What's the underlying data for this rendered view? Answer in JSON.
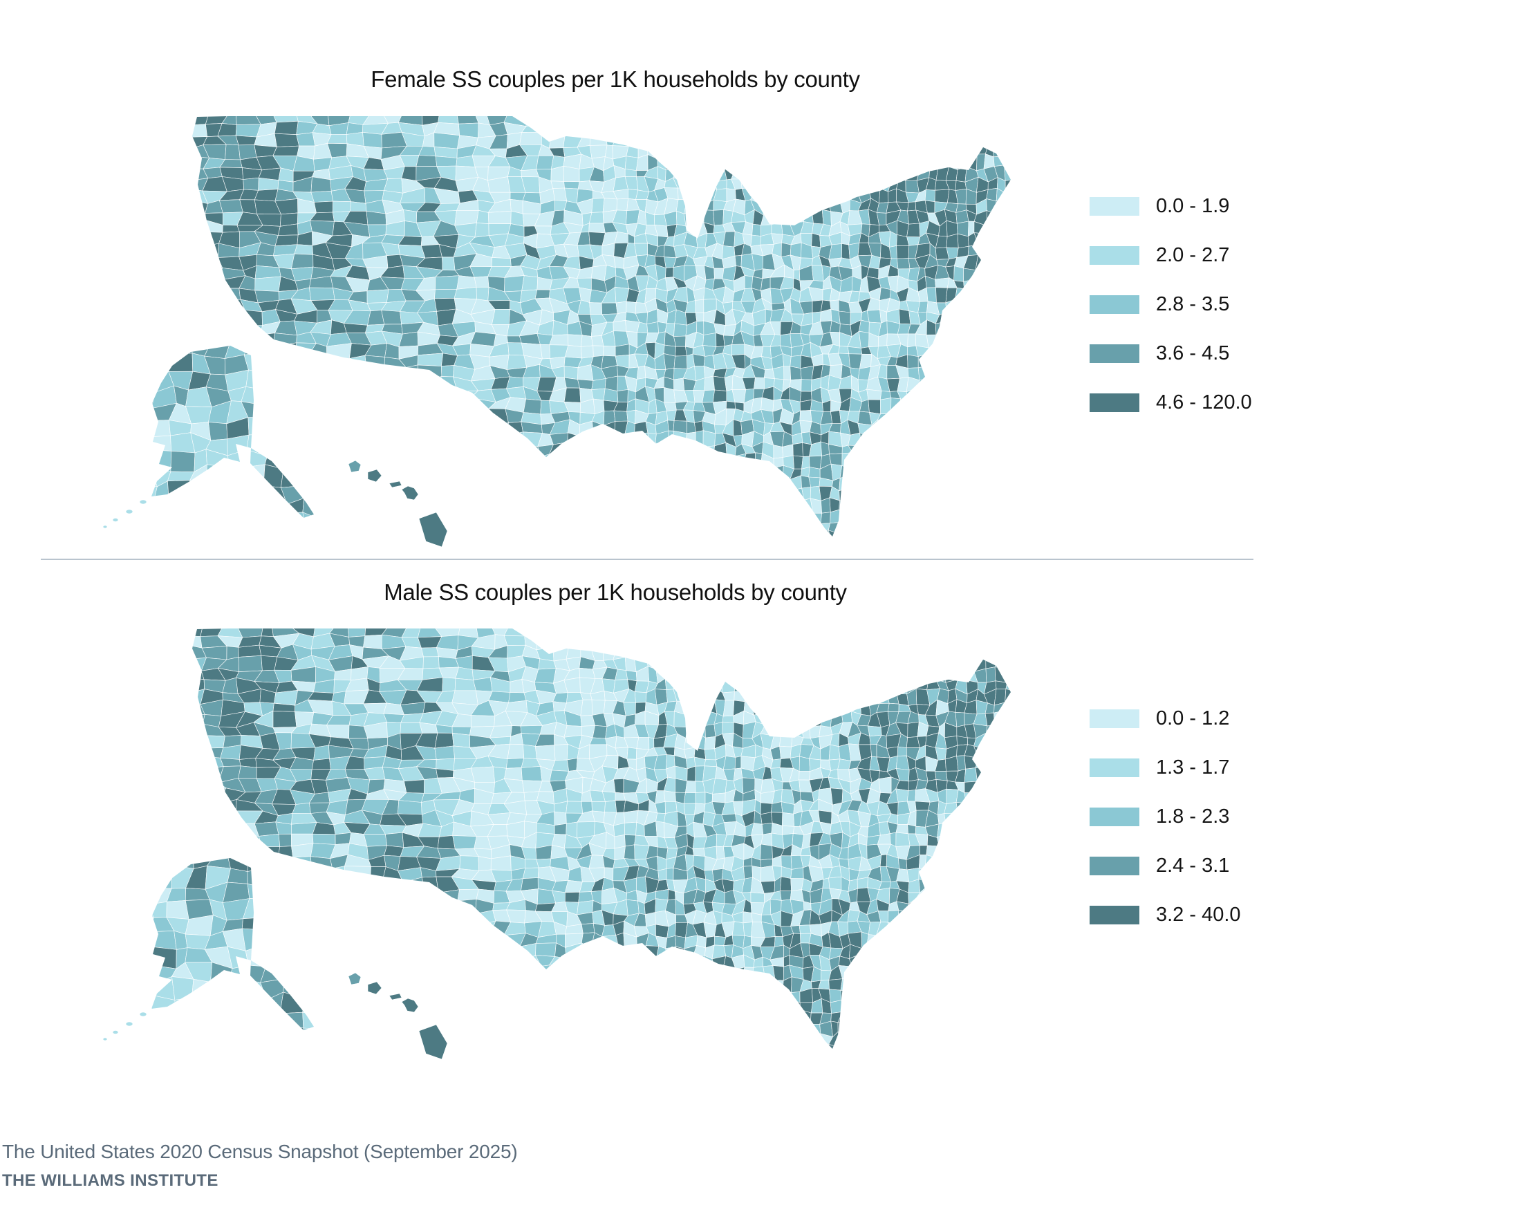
{
  "maps": [
    {
      "title": "Female SS couples per 1K households by county",
      "legend": [
        "0.0 - 1.9",
        "2.0 - 2.7",
        "2.8 - 3.5",
        "3.6 - 4.5",
        "4.6 - 120.0"
      ]
    },
    {
      "title": "Male SS couples per 1K households by county",
      "legend": [
        "0.0 - 1.2",
        "1.3 - 1.7",
        "1.8 - 2.3",
        "2.4 - 3.1",
        "3.2 - 40.0"
      ]
    }
  ],
  "palette": [
    "#cdedf5",
    "#aadee8",
    "#8bc8d4",
    "#68a0ab",
    "#4d7a83"
  ],
  "footer": {
    "line1": "The United States 2020 Census Snapshot (September 2025)",
    "line2": "THE WILLIAMS INSTITUTE"
  },
  "colors": {
    "title_text": "#111111",
    "legend_text": "#141414",
    "footer_text": "#5a6a79",
    "divider": "#b9c4ce",
    "background": "#ffffff"
  },
  "chart_data": [
    {
      "type": "heatmap",
      "subtype": "us-county-choropleth",
      "title": "Female SS couples per 1K households by county",
      "unit": "female same-sex couples per 1,000 households",
      "geography": "United States counties (contiguous US with Alaska and Hawaii insets)",
      "legend_position": "right",
      "bins": [
        {
          "range": "0.0 - 1.9",
          "min": 0.0,
          "max": 1.9,
          "color": "#cdedf5"
        },
        {
          "range": "2.0 - 2.7",
          "min": 2.0,
          "max": 2.7,
          "color": "#aadee8"
        },
        {
          "range": "2.8 - 3.5",
          "min": 2.8,
          "max": 3.5,
          "color": "#8bc8d4"
        },
        {
          "range": "3.6 - 4.5",
          "min": 3.6,
          "max": 4.5,
          "color": "#68a0ab"
        },
        {
          "range": "4.6 - 120.0",
          "min": 4.6,
          "max": 120.0,
          "color": "#4d7a83"
        }
      ],
      "pattern_notes": "Pacific coast, Southwest, New England and Florida counties mostly in the darkest bins; Great Plains counties mostly in the lightest bins"
    },
    {
      "type": "heatmap",
      "subtype": "us-county-choropleth",
      "title": "Male SS couples per 1K households by county",
      "unit": "male same-sex couples per 1,000 households",
      "geography": "United States counties (contiguous US with Alaska and Hawaii insets)",
      "legend_position": "right",
      "bins": [
        {
          "range": "0.0 - 1.2",
          "min": 0.0,
          "max": 1.2,
          "color": "#cdedf5"
        },
        {
          "range": "1.3 - 1.7",
          "min": 1.3,
          "max": 1.7,
          "color": "#aadee8"
        },
        {
          "range": "1.8 - 2.3",
          "min": 1.8,
          "max": 2.3,
          "color": "#8bc8d4"
        },
        {
          "range": "2.4 - 3.1",
          "min": 2.4,
          "max": 3.1,
          "color": "#68a0ab"
        },
        {
          "range": "3.2 - 40.0",
          "min": 3.2,
          "max": 40.0,
          "color": "#4d7a83"
        }
      ],
      "pattern_notes": "West coast, Northeast corridor and nearly all of peninsular Florida in the darkest bin; Plains and Midwest mostly lightest bins"
    }
  ]
}
